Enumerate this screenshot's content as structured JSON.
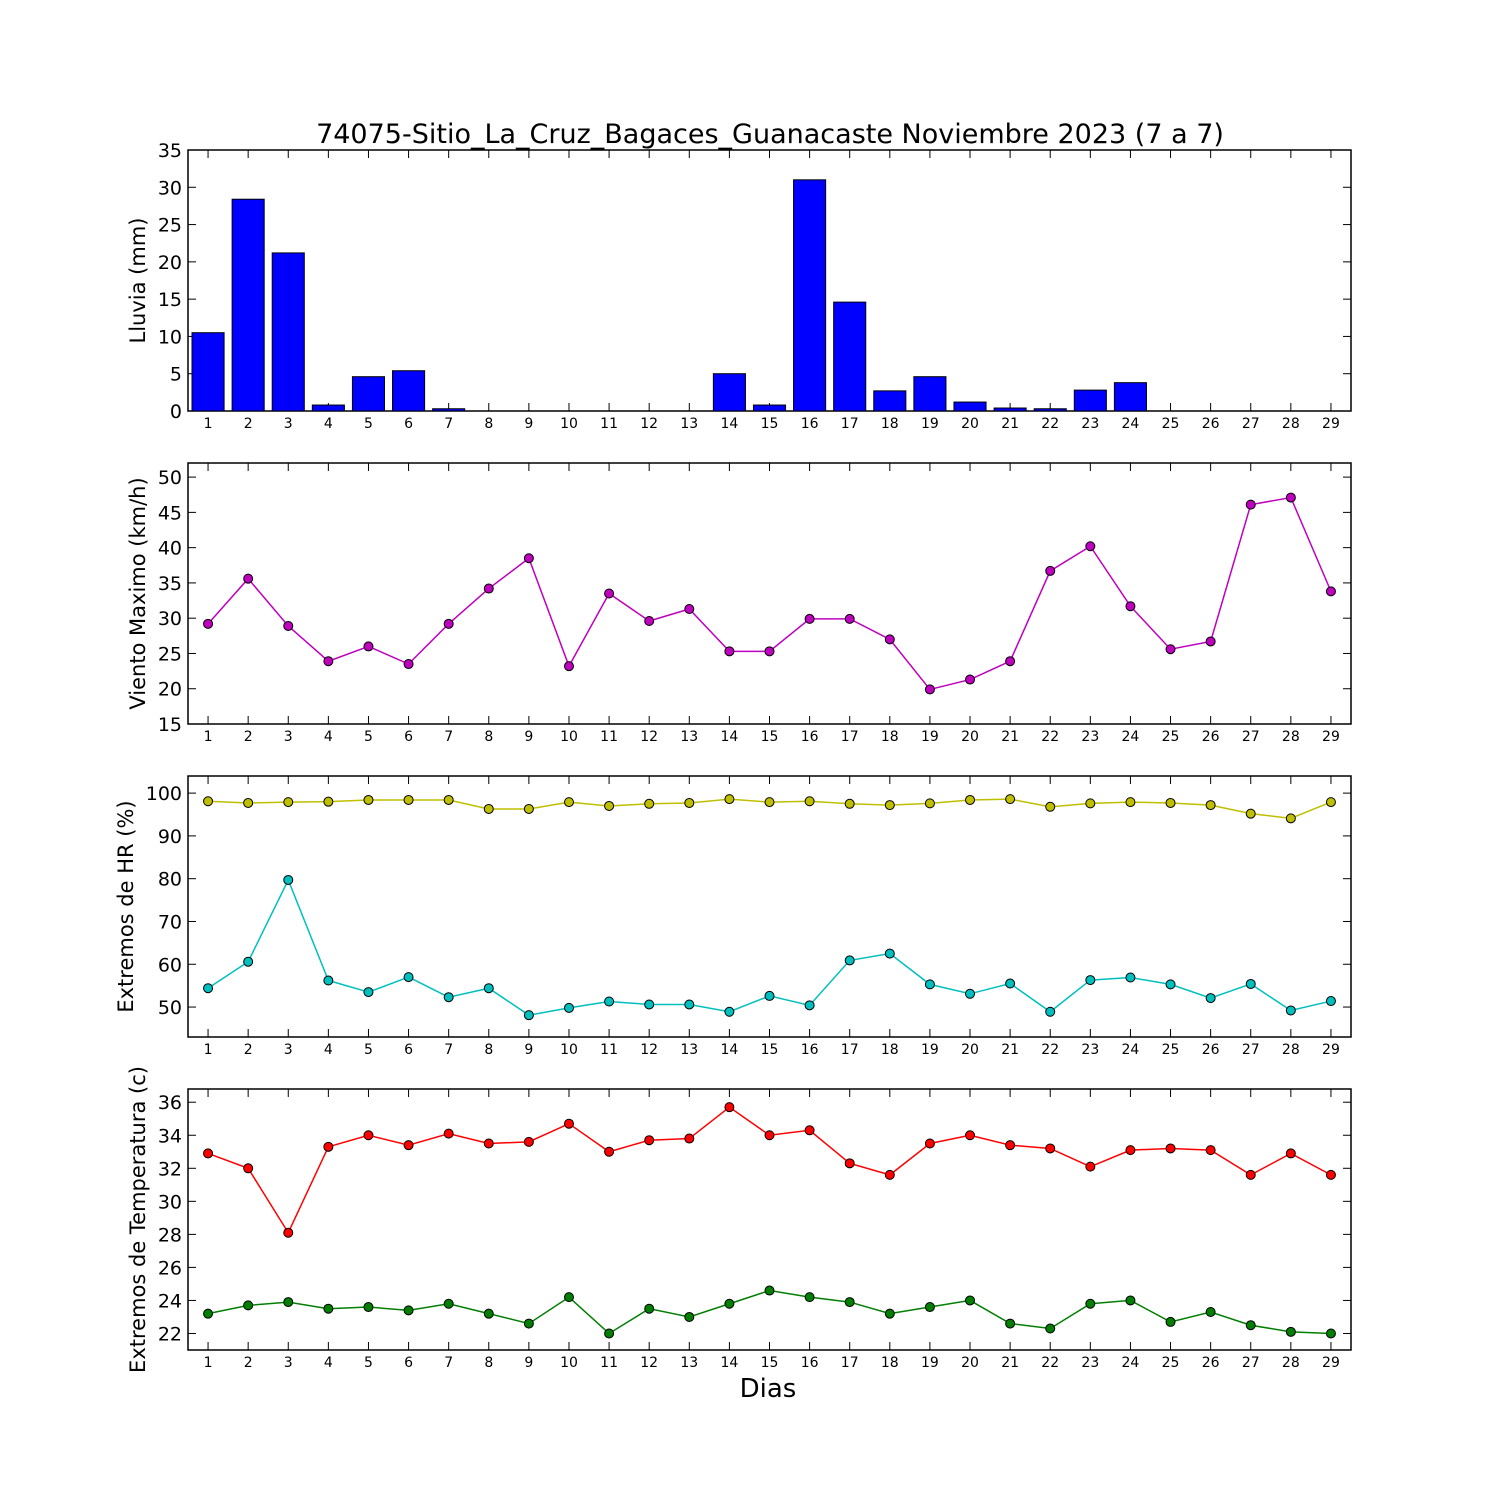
{
  "figure_title": "74075-Sitio_La_Cruz_Bagaces_Guanacaste Noviembre 2023  (7 a 7)",
  "xlabel": "Dias",
  "chart_data": [
    {
      "type": "bar",
      "ylabel": "Lluvia (mm)",
      "ylim": [
        0,
        35
      ],
      "yticks": [
        0,
        5,
        10,
        15,
        20,
        25,
        30,
        35
      ],
      "categories": [
        1,
        2,
        3,
        4,
        5,
        6,
        7,
        8,
        9,
        10,
        11,
        12,
        13,
        14,
        15,
        16,
        17,
        18,
        19,
        20,
        21,
        22,
        23,
        24,
        25,
        26,
        27,
        28,
        29
      ],
      "series": [
        {
          "color": "#0000ff",
          "values": [
            10.5,
            28.4,
            21.2,
            0.8,
            4.6,
            5.4,
            0.3,
            0,
            0,
            0,
            0,
            0,
            0,
            5.0,
            0.8,
            31.0,
            14.6,
            2.7,
            4.6,
            1.2,
            0.4,
            0.3,
            2.8,
            3.8,
            0,
            0,
            0,
            0,
            0
          ]
        }
      ]
    },
    {
      "type": "line",
      "ylabel": "Viento Maximo (km/h)",
      "ylim": [
        15,
        52
      ],
      "yticks": [
        15,
        20,
        25,
        30,
        35,
        40,
        45,
        50
      ],
      "x": [
        1,
        2,
        3,
        4,
        5,
        6,
        7,
        8,
        9,
        10,
        11,
        12,
        13,
        14,
        15,
        16,
        17,
        18,
        19,
        20,
        21,
        22,
        23,
        24,
        25,
        26,
        27,
        28,
        29
      ],
      "series": [
        {
          "color": "#bf00bf",
          "values": [
            29.2,
            35.6,
            28.9,
            23.9,
            26.0,
            23.5,
            29.2,
            34.2,
            38.5,
            23.2,
            33.5,
            29.6,
            31.3,
            25.3,
            25.3,
            29.9,
            29.9,
            27.0,
            19.9,
            21.3,
            23.9,
            36.7,
            40.2,
            31.7,
            25.6,
            26.7,
            46.1,
            47.1,
            33.8
          ]
        }
      ]
    },
    {
      "type": "line",
      "ylabel": "Extremos de HR (%)",
      "ylim": [
        43,
        104
      ],
      "yticks": [
        50,
        60,
        70,
        80,
        90,
        100
      ],
      "x": [
        1,
        2,
        3,
        4,
        5,
        6,
        7,
        8,
        9,
        10,
        11,
        12,
        13,
        14,
        15,
        16,
        17,
        18,
        19,
        20,
        21,
        22,
        23,
        24,
        25,
        26,
        27,
        28,
        29
      ],
      "series": [
        {
          "color": "#bfbf00",
          "values": [
            98.1,
            97.7,
            97.9,
            98.0,
            98.4,
            98.4,
            98.4,
            96.3,
            96.3,
            97.9,
            97.0,
            97.5,
            97.7,
            98.6,
            97.9,
            98.1,
            97.5,
            97.2,
            97.6,
            98.4,
            98.6,
            96.8,
            97.6,
            97.9,
            97.7,
            97.2,
            95.2,
            94.1,
            97.9
          ]
        },
        {
          "color": "#00bfbf",
          "values": [
            54.4,
            60.6,
            79.7,
            56.2,
            53.5,
            57.0,
            52.3,
            54.4,
            48.1,
            49.8,
            51.3,
            50.6,
            50.6,
            48.9,
            52.6,
            50.4,
            60.9,
            62.5,
            55.3,
            53.1,
            55.5,
            48.9,
            56.3,
            56.9,
            55.3,
            52.1,
            55.4,
            49.2,
            51.4
          ]
        }
      ]
    },
    {
      "type": "line",
      "ylabel": "Extremos de Temperatura (c)",
      "ylim": [
        21,
        36.8
      ],
      "yticks": [
        22,
        24,
        26,
        28,
        30,
        32,
        34,
        36
      ],
      "x": [
        1,
        2,
        3,
        4,
        5,
        6,
        7,
        8,
        9,
        10,
        11,
        12,
        13,
        14,
        15,
        16,
        17,
        18,
        19,
        20,
        21,
        22,
        23,
        24,
        25,
        26,
        27,
        28,
        29
      ],
      "series": [
        {
          "color": "#ff0000",
          "values": [
            32.9,
            32.0,
            28.1,
            33.3,
            34.0,
            33.4,
            34.1,
            33.5,
            33.6,
            34.7,
            33.0,
            33.7,
            33.8,
            35.7,
            34.0,
            34.3,
            32.3,
            31.6,
            33.5,
            34.0,
            33.4,
            33.2,
            32.1,
            33.1,
            33.2,
            33.1,
            31.6,
            32.9,
            31.6
          ]
        },
        {
          "color": "#007f00",
          "values": [
            23.2,
            23.7,
            23.9,
            23.5,
            23.6,
            23.4,
            23.8,
            23.2,
            22.6,
            24.2,
            22.0,
            23.5,
            23.0,
            23.8,
            24.6,
            24.2,
            23.9,
            23.2,
            23.6,
            24.0,
            22.6,
            22.3,
            23.8,
            24.0,
            22.7,
            23.3,
            22.5,
            22.1,
            22.0
          ]
        }
      ]
    }
  ]
}
